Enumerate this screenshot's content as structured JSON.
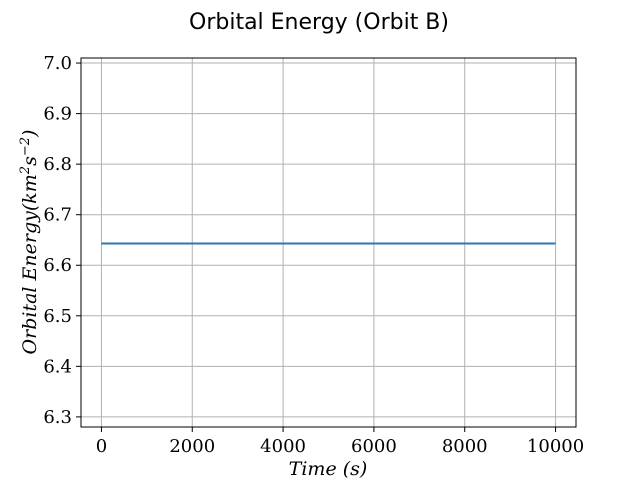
{
  "chart_data": {
    "type": "line",
    "title": "Orbital Energy (Orbit B)",
    "xlabel": "Time (s)",
    "ylabel_text": "Orbital Energy(km",
    "ylabel_sup1": "2",
    "ylabel_mid": "s",
    "ylabel_sup2": "−2",
    "ylabel_close": ")",
    "xlim": [
      -450,
      10450
    ],
    "ylim": [
      6.28,
      7.01
    ],
    "xticks": [
      0,
      2000,
      4000,
      6000,
      8000,
      10000
    ],
    "xtick_labels": [
      "0",
      "2000",
      "4000",
      "6000",
      "8000",
      "10000"
    ],
    "yticks": [
      6.3,
      6.4,
      6.5,
      6.6,
      6.7,
      6.8,
      6.9,
      7.0
    ],
    "ytick_labels": [
      "6.3",
      "6.4",
      "6.5",
      "6.6",
      "6.7",
      "6.8",
      "6.9",
      "7.0"
    ],
    "grid": true,
    "series": [
      {
        "color": "#2a7ab0",
        "x": [
          0,
          10000
        ],
        "y": [
          6.643,
          6.643
        ]
      }
    ]
  }
}
